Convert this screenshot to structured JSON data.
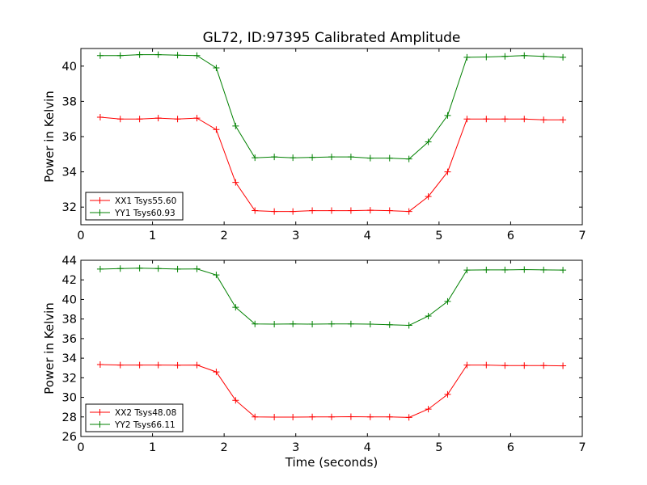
{
  "chart_data": [
    {
      "type": "line",
      "title": "GL72, ID:97395 Calibrated Amplitude",
      "xlabel": "",
      "ylabel": "Power in Kelvin",
      "xlim": [
        0,
        7
      ],
      "ylim": [
        31,
        41
      ],
      "xticks": [
        0,
        1,
        2,
        3,
        4,
        5,
        6,
        7
      ],
      "yticks": [
        32,
        34,
        36,
        38,
        40
      ],
      "legend_position": "lower-left",
      "grid": false,
      "x": [
        0.27,
        0.55,
        0.82,
        1.08,
        1.35,
        1.62,
        1.89,
        2.16,
        2.43,
        2.7,
        2.96,
        3.23,
        3.5,
        3.77,
        4.04,
        4.31,
        4.58,
        4.85,
        5.12,
        5.39,
        5.66,
        5.92,
        6.19,
        6.46,
        6.73
      ],
      "series": [
        {
          "name": "XX1 Tsys55.60",
          "color": "#ff0000",
          "values": [
            37.1,
            37.0,
            37.0,
            37.05,
            37.0,
            37.05,
            36.4,
            33.4,
            31.8,
            31.75,
            31.75,
            31.8,
            31.8,
            31.8,
            31.82,
            31.8,
            31.75,
            32.6,
            34.0,
            37.0,
            37.0,
            37.0,
            37.0,
            36.95,
            36.95
          ]
        },
        {
          "name": "YY1 Tsys60.93",
          "color": "#008000",
          "values": [
            40.6,
            40.6,
            40.65,
            40.65,
            40.62,
            40.6,
            39.9,
            36.6,
            34.8,
            34.85,
            34.8,
            34.82,
            34.85,
            34.85,
            34.78,
            34.78,
            34.73,
            35.7,
            37.2,
            40.5,
            40.52,
            40.55,
            40.6,
            40.55,
            40.5
          ]
        }
      ]
    },
    {
      "type": "line",
      "title": "",
      "xlabel": "Time (seconds)",
      "ylabel": "Power in Kelvin",
      "xlim": [
        0,
        7
      ],
      "ylim": [
        26,
        44
      ],
      "xticks": [
        0,
        1,
        2,
        3,
        4,
        5,
        6,
        7
      ],
      "yticks": [
        26,
        28,
        30,
        32,
        34,
        36,
        38,
        40,
        42,
        44
      ],
      "legend_position": "lower-left",
      "grid": false,
      "x": [
        0.27,
        0.55,
        0.82,
        1.08,
        1.35,
        1.62,
        1.89,
        2.16,
        2.43,
        2.7,
        2.96,
        3.23,
        3.5,
        3.77,
        4.04,
        4.31,
        4.58,
        4.85,
        5.12,
        5.39,
        5.66,
        5.92,
        6.19,
        6.46,
        6.73
      ],
      "series": [
        {
          "name": "XX2 Tsys48.08",
          "color": "#ff0000",
          "values": [
            33.35,
            33.3,
            33.3,
            33.3,
            33.28,
            33.3,
            32.6,
            29.7,
            28.0,
            27.98,
            27.98,
            28.0,
            28.0,
            28.02,
            28.0,
            28.0,
            27.95,
            28.8,
            30.3,
            33.3,
            33.3,
            33.25,
            33.25,
            33.25,
            33.22
          ]
        },
        {
          "name": "YY2 Tsys66.11",
          "color": "#008000",
          "values": [
            43.1,
            43.15,
            43.2,
            43.15,
            43.1,
            43.12,
            42.5,
            39.2,
            37.5,
            37.48,
            37.5,
            37.48,
            37.5,
            37.5,
            37.48,
            37.42,
            37.35,
            38.3,
            39.8,
            43.0,
            43.02,
            43.02,
            43.05,
            43.02,
            43.0
          ]
        }
      ]
    }
  ]
}
